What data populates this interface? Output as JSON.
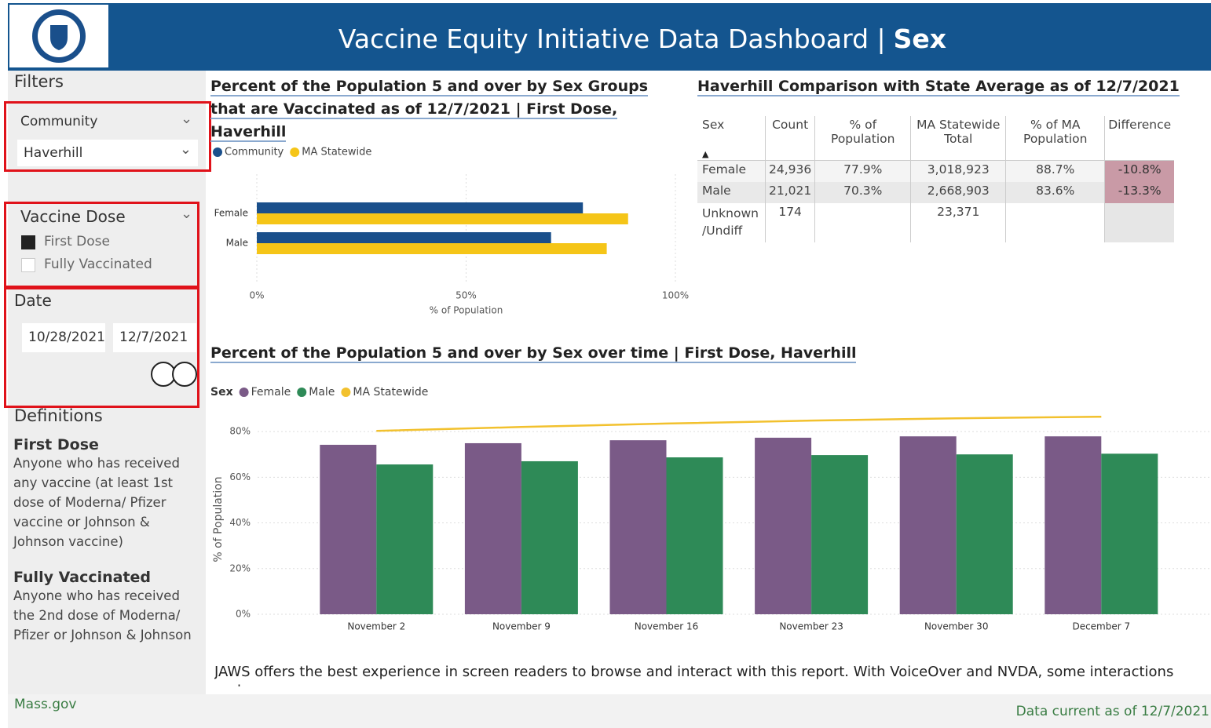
{
  "header": {
    "title": "Vaccine Equity Initiative Data Dashboard |",
    "section": "Sex"
  },
  "filters": {
    "title": "Filters",
    "community": {
      "label": "Community",
      "value": "Haverhill"
    },
    "vaccine_dose": {
      "label": "Vaccine Dose",
      "options": [
        {
          "label": "First Dose",
          "checked": true
        },
        {
          "label": "Fully Vaccinated",
          "checked": false
        }
      ]
    },
    "date": {
      "label": "Date",
      "start": "10/28/2021",
      "end": "12/7/2021"
    }
  },
  "definitions": {
    "title": "Definitions",
    "items": [
      {
        "term": "First Dose",
        "text": "Anyone who has received any vaccine (at least 1st dose of Moderna/ Pfizer vaccine or Johnson & Johnson vaccine)"
      },
      {
        "term": "Fully Vaccinated",
        "text": "Anyone who has received the 2nd dose of Moderna/ Pfizer or Johnson & Johnson"
      }
    ]
  },
  "chart_data": [
    {
      "type": "hbar",
      "title": "Percent of the Population 5 and over by Sex Groups that are Vaccinated as of 12/7/2021 | First Dose, Haverhill",
      "categories": [
        "Female",
        "Male"
      ],
      "series": [
        {
          "name": "Community",
          "color": "#1a4f8b",
          "values": [
            77.9,
            70.3
          ]
        },
        {
          "name": "MA Statewide",
          "color": "#f5c518",
          "values": [
            88.7,
            83.6
          ]
        }
      ],
      "xlim": [
        0,
        100
      ],
      "xticks": [
        {
          "value": 0,
          "label": "0%"
        },
        {
          "value": 50,
          "label": "50%"
        },
        {
          "value": 100,
          "label": "100%"
        }
      ],
      "xlabel": "% of Population",
      "grid": true
    },
    {
      "type": "bar",
      "title": "Percent of the Population 5 and over by Sex over time | First Dose, Haverhill",
      "legend_title": "Sex",
      "categories": [
        "November 2",
        "November 9",
        "November 16",
        "November 23",
        "November 30",
        "December 7"
      ],
      "series": [
        {
          "name": "Female",
          "color": "#7a5a87",
          "kind": "bar",
          "values": [
            74.2,
            74.9,
            76.2,
            77.3,
            77.9,
            77.9
          ]
        },
        {
          "name": "Male",
          "color": "#2e8a57",
          "kind": "bar",
          "values": [
            65.6,
            67.0,
            68.7,
            69.7,
            70.0,
            70.3
          ]
        },
        {
          "name": "MA Statewide",
          "color": "#f2c12e",
          "kind": "line",
          "values": [
            80.3,
            82.0,
            83.5,
            84.8,
            85.8,
            86.5
          ]
        }
      ],
      "ylim": [
        0,
        90
      ],
      "yticks": [
        {
          "value": 0,
          "label": "0%"
        },
        {
          "value": 20,
          "label": "20%"
        },
        {
          "value": 40,
          "label": "40%"
        },
        {
          "value": 60,
          "label": "60%"
        },
        {
          "value": 80,
          "label": "80%"
        }
      ],
      "ylabel": "% of Population",
      "grid": true
    }
  ],
  "table": {
    "title": "Haverhill Comparison with State Average as of 12/7/2021",
    "headers": [
      "Sex",
      "Count",
      "% of Population",
      "MA Statewide Total",
      "% of MA Population",
      "Difference"
    ],
    "rows": [
      [
        "Female",
        "24,936",
        "77.9%",
        "3,018,923",
        "88.7%",
        "-10.8%"
      ],
      [
        "Male",
        "21,021",
        "70.3%",
        "2,668,903",
        "83.6%",
        "-13.3%"
      ],
      [
        "Unknown /Undiff",
        "174",
        null,
        "23,371",
        null,
        null
      ]
    ]
  },
  "notice": "JAWS offers the best experience in screen readers to browse and interact with this report. With VoiceOver and NVDA, some interactions and",
  "footer": {
    "left": "Mass.gov",
    "right": "Data current as of 12/7/2021"
  }
}
